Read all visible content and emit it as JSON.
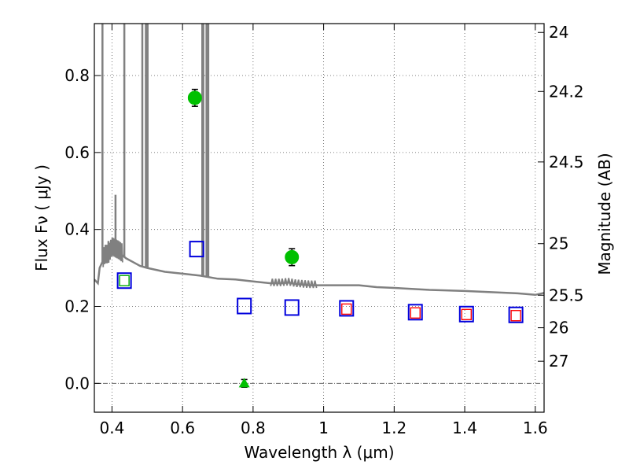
{
  "chart_data": {
    "type": "scatter",
    "title": "",
    "xlabel": "Wavelength  λ (μm)",
    "ylabel": "Flux  Fν  ( μJy )",
    "ylabel_right": "Magnitude (AB)",
    "xlim": [
      0.35,
      1.625
    ],
    "ylim": [
      -0.075,
      0.935
    ],
    "grid": true,
    "legend": "none",
    "x_ticks": [
      {
        "value": 0.4,
        "label": "0.4"
      },
      {
        "value": 0.6,
        "label": "0.6"
      },
      {
        "value": 0.8,
        "label": "0.8"
      },
      {
        "value": 1.0,
        "label": "1"
      },
      {
        "value": 1.2,
        "label": "1.2"
      },
      {
        "value": 1.4,
        "label": "1.4"
      },
      {
        "value": 1.6,
        "label": "1.6"
      }
    ],
    "y_ticks": [
      {
        "value": 0.0,
        "label": "0.0"
      },
      {
        "value": 0.2,
        "label": "0.2"
      },
      {
        "value": 0.4,
        "label": "0.4"
      },
      {
        "value": 0.6,
        "label": "0.6"
      },
      {
        "value": 0.8,
        "label": "0.8"
      }
    ],
    "mag_ticks": [
      {
        "mag": 24,
        "label": "24"
      },
      {
        "mag": 24.2,
        "label": "24.2"
      },
      {
        "mag": 24.5,
        "label": "24.5"
      },
      {
        "mag": 25,
        "label": "25"
      },
      {
        "mag": 25.5,
        "label": "25.5"
      },
      {
        "mag": 26,
        "label": "26"
      },
      {
        "mag": 27,
        "label": "27"
      }
    ],
    "colors": {
      "model": "#808080",
      "detection": "#00c000",
      "model_photometry": "#0000dd",
      "alt_photometry": "#ff0000",
      "green_square": "#00aa00",
      "error_bar": "#000000",
      "grid": "#555555"
    },
    "model_spectrum": {
      "continuum": [
        [
          0.35,
          0.27
        ],
        [
          0.36,
          0.26
        ],
        [
          0.365,
          0.3
        ],
        [
          0.38,
          0.33
        ],
        [
          0.39,
          0.33
        ],
        [
          0.4,
          0.35
        ],
        [
          0.42,
          0.34
        ],
        [
          0.44,
          0.325
        ],
        [
          0.46,
          0.315
        ],
        [
          0.48,
          0.305
        ],
        [
          0.5,
          0.3
        ],
        [
          0.55,
          0.29
        ],
        [
          0.6,
          0.285
        ],
        [
          0.65,
          0.28
        ],
        [
          0.7,
          0.272
        ],
        [
          0.75,
          0.27
        ],
        [
          0.8,
          0.265
        ],
        [
          0.85,
          0.26
        ],
        [
          0.88,
          0.26
        ],
        [
          0.9,
          0.262
        ],
        [
          0.92,
          0.258
        ],
        [
          0.96,
          0.255
        ],
        [
          1.0,
          0.255
        ],
        [
          1.05,
          0.255
        ],
        [
          1.1,
          0.255
        ],
        [
          1.15,
          0.25
        ],
        [
          1.2,
          0.248
        ],
        [
          1.3,
          0.243
        ],
        [
          1.4,
          0.24
        ],
        [
          1.5,
          0.236
        ],
        [
          1.55,
          0.234
        ],
        [
          1.6,
          0.23
        ],
        [
          1.625,
          0.235
        ]
      ],
      "emission_lines": [
        {
          "x": 0.373,
          "peak": 0.935
        },
        {
          "x": 0.39,
          "peak": 0.37
        },
        {
          "x": 0.41,
          "peak": 0.49
        },
        {
          "x": 0.435,
          "peak": 0.935
        },
        {
          "x": 0.486,
          "peak": 0.935
        },
        {
          "x": 0.496,
          "peak": 0.935
        },
        {
          "x": 0.501,
          "peak": 0.935
        },
        {
          "x": 0.656,
          "peak": 0.935
        },
        {
          "x": 0.659,
          "peak": 0.935
        },
        {
          "x": 0.668,
          "peak": 0.935
        },
        {
          "x": 0.673,
          "peak": 0.935
        }
      ]
    },
    "series": [
      {
        "points": [
          {
            "x": 0.635,
            "y": 0.742,
            "err": 0.022,
            "marker": "circle",
            "color": "#00c000"
          },
          {
            "x": 0.91,
            "y": 0.328,
            "err": 0.022,
            "marker": "circle",
            "color": "#00c000"
          },
          {
            "x": 0.775,
            "y": 0.0,
            "err": 0.01,
            "marker": "triangle",
            "color": "#00c000"
          }
        ]
      },
      {
        "points": [
          {
            "x": 0.435,
            "y": 0.267,
            "color": "#0000dd"
          },
          {
            "x": 0.64,
            "y": 0.349,
            "color": "#0000dd"
          },
          {
            "x": 0.775,
            "y": 0.201,
            "color": "#0000dd"
          },
          {
            "x": 0.91,
            "y": 0.197,
            "color": "#0000dd"
          },
          {
            "x": 1.065,
            "y": 0.195,
            "color": "#0000dd"
          },
          {
            "x": 1.26,
            "y": 0.185,
            "color": "#0000dd"
          },
          {
            "x": 1.405,
            "y": 0.18,
            "color": "#0000dd"
          },
          {
            "x": 1.545,
            "y": 0.178,
            "color": "#0000dd"
          }
        ]
      },
      {
        "points": [
          {
            "x": 0.435,
            "y": 0.267,
            "color": "#00aa00"
          },
          {
            "x": 1.065,
            "y": 0.193,
            "color": "#ff0000"
          },
          {
            "x": 1.26,
            "y": 0.183,
            "color": "#ff0000"
          },
          {
            "x": 1.405,
            "y": 0.179,
            "color": "#ff0000"
          },
          {
            "x": 1.545,
            "y": 0.176,
            "color": "#ff0000"
          }
        ]
      }
    ]
  }
}
